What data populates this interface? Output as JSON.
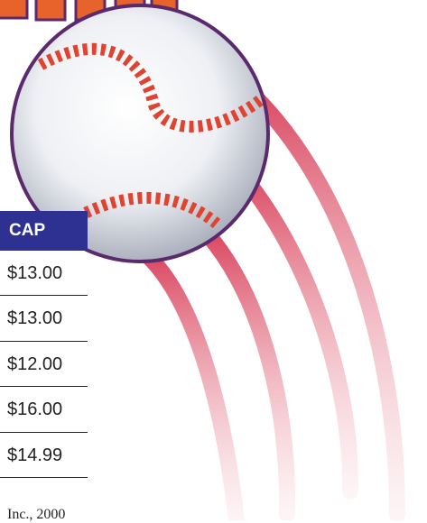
{
  "table": {
    "header": "CAP",
    "rows": [
      "$13.00",
      "$13.00",
      "$12.00",
      "$16.00",
      "$14.99"
    ]
  },
  "footer": "Inc., 2000"
}
